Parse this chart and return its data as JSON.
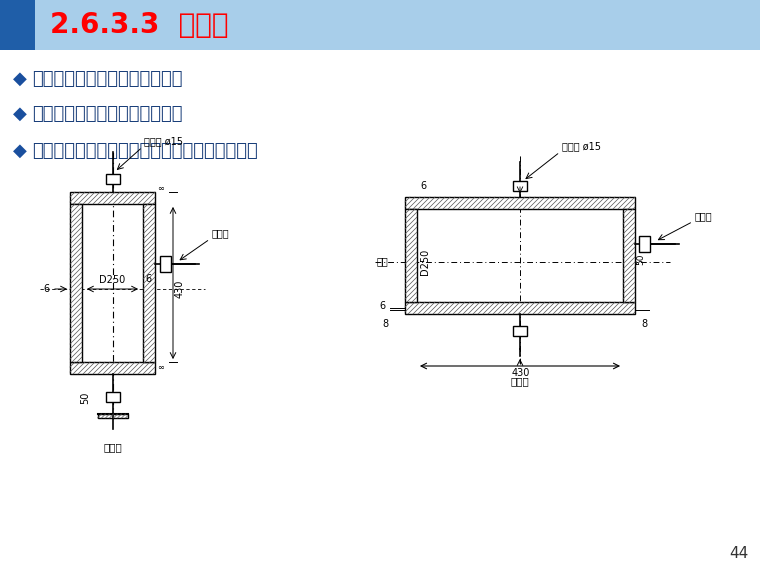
{
  "title": "2.6.3.3  集气罐",
  "title_color": "#FF0000",
  "bullet_diamond": "◆",
  "bullets": [
    "分离、积聚和排除系统内的空气",
    "位置：管道的高点和设备的上方",
    "集气罐用短钙管两端封堵制成。立式和卧式之分"
  ],
  "page_number": "44",
  "bg_color": "#FFFFFF",
  "lc": "#000000",
  "label_fangqiguan": "放气管 ø15",
  "label_jinshui": "进水口",
  "label_chushui": "出水口",
  "label_D250": "D250",
  "label_430": "430",
  "label_6": "6",
  "label_8": "8",
  "label_50": "50",
  "label_kou": "：口"
}
